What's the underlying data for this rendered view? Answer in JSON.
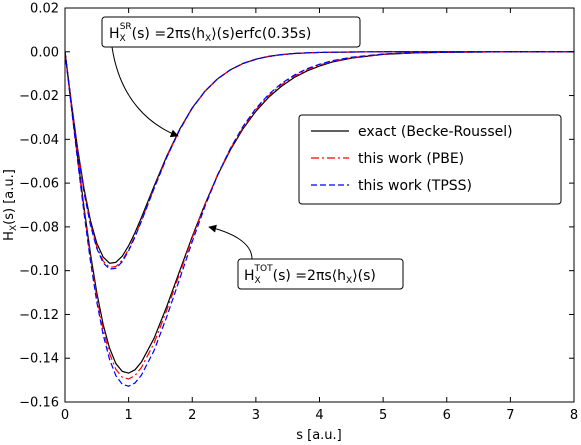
{
  "chart_data": {
    "type": "line",
    "xlabel": "s [a.u.]",
    "ylabel": "H",
    "ylabel_sub": "X",
    "ylabel_rest": "(s) [a.u.]",
    "xlim": [
      0,
      8
    ],
    "ylim": [
      -0.16,
      0.02
    ],
    "xticks": [
      0,
      1,
      2,
      3,
      4,
      5,
      6,
      7,
      8
    ],
    "xtick_labels": [
      "0",
      "1",
      "2",
      "3",
      "4",
      "5",
      "6",
      "7",
      "8"
    ],
    "yticks": [
      0.02,
      0.0,
      -0.02,
      -0.04,
      -0.06,
      -0.08,
      -0.1,
      -0.12,
      -0.14,
      -0.16
    ],
    "ytick_labels": [
      "0.02",
      "0.00",
      "−0.02",
      "−0.04",
      "−0.06",
      "−0.08",
      "−0.10",
      "−0.12",
      "−0.14",
      "−0.16"
    ],
    "grid": false,
    "legend_position": "center-right",
    "legend": [
      {
        "label": "exact (Becke-Roussel)",
        "color": "#000000",
        "dash": "solid"
      },
      {
        "label": "this work (PBE)",
        "color": "#ff0000",
        "dash": "dashdot"
      },
      {
        "label": "this work (TPSS)",
        "color": "#0000ff",
        "dash": "dashed"
      }
    ],
    "annotations": [
      {
        "id": "sr",
        "H": "H",
        "sub": "X",
        "sup": "SR",
        "text": "(s) =2πs⟨h",
        "text_sub": "X",
        "text_rest": "⟩(s)erfc(0.35s)",
        "points_to": [
          1.78,
          -0.04
        ]
      },
      {
        "id": "tot",
        "H": "H",
        "sub": "X",
        "sup": "TOT",
        "text": "(s) =2πs⟨h",
        "text_sub": "X",
        "text_rest": "⟩(s)",
        "points_to": [
          2.2,
          -0.08
        ]
      }
    ],
    "series": [
      {
        "color": "#000000",
        "dash": "solid",
        "group": "sr",
        "x": [
          0,
          0.1,
          0.2,
          0.3,
          0.4,
          0.5,
          0.6,
          0.7,
          0.8,
          0.9,
          1.0,
          1.1,
          1.2,
          1.4,
          1.6,
          1.8,
          2.0,
          2.2,
          2.4,
          2.6,
          2.8,
          3.0,
          3.2,
          3.4,
          3.6,
          3.8,
          4.0,
          4.5,
          5.0,
          5.5,
          6.0,
          7.0,
          8.0
        ],
        "y": [
          0,
          -0.0232,
          -0.0445,
          -0.0627,
          -0.0771,
          -0.0875,
          -0.0938,
          -0.0966,
          -0.0962,
          -0.0934,
          -0.0886,
          -0.0826,
          -0.0758,
          -0.0614,
          -0.0476,
          -0.0355,
          -0.0256,
          -0.018,
          -0.0123,
          -0.0082,
          -0.0053,
          -0.0034,
          -0.0021,
          -0.0013,
          -0.0008,
          -0.0005,
          -0.0003,
          -0.0001,
          0,
          0,
          0,
          0,
          0
        ]
      },
      {
        "color": "#ff0000",
        "dash": "dashdot",
        "group": "sr",
        "x": [
          0,
          0.1,
          0.2,
          0.3,
          0.4,
          0.5,
          0.6,
          0.7,
          0.8,
          0.9,
          1.0,
          1.1,
          1.2,
          1.4,
          1.6,
          1.8,
          2.0,
          2.2,
          2.4,
          2.6,
          2.8,
          3.0,
          3.2,
          3.4,
          3.6,
          3.8,
          4.0,
          4.5,
          5.0,
          5.5,
          6.0,
          7.0,
          8.0
        ],
        "y": [
          0,
          -0.0236,
          -0.0453,
          -0.0638,
          -0.0785,
          -0.0891,
          -0.0956,
          -0.0985,
          -0.0981,
          -0.0952,
          -0.0903,
          -0.0841,
          -0.0771,
          -0.0623,
          -0.0481,
          -0.0358,
          -0.0258,
          -0.0181,
          -0.0124,
          -0.0083,
          -0.0054,
          -0.0035,
          -0.0022,
          -0.0014,
          -0.0008,
          -0.0005,
          -0.0003,
          -0.0001,
          0,
          0,
          0,
          0,
          0
        ]
      },
      {
        "color": "#0000ff",
        "dash": "dashed",
        "group": "sr",
        "x": [
          0,
          0.1,
          0.2,
          0.3,
          0.4,
          0.5,
          0.6,
          0.7,
          0.8,
          0.9,
          1.0,
          1.1,
          1.2,
          1.4,
          1.6,
          1.8,
          2.0,
          2.2,
          2.4,
          2.6,
          2.8,
          3.0,
          3.2,
          3.4,
          3.6,
          3.8,
          4.0,
          4.5,
          5.0,
          5.5,
          6.0,
          7.0,
          8.0
        ],
        "y": [
          0,
          -0.0238,
          -0.0457,
          -0.0644,
          -0.0792,
          -0.0899,
          -0.0964,
          -0.0993,
          -0.0989,
          -0.0959,
          -0.0909,
          -0.0846,
          -0.0775,
          -0.0625,
          -0.0482,
          -0.0358,
          -0.0257,
          -0.018,
          -0.0123,
          -0.0082,
          -0.0053,
          -0.0034,
          -0.0021,
          -0.0013,
          -0.0008,
          -0.0005,
          -0.0003,
          -0.0001,
          0,
          0,
          0,
          0,
          0
        ]
      },
      {
        "color": "#000000",
        "dash": "solid",
        "group": "tot",
        "x": [
          0,
          0.1,
          0.2,
          0.3,
          0.4,
          0.5,
          0.6,
          0.7,
          0.8,
          0.9,
          1.0,
          1.1,
          1.2,
          1.4,
          1.6,
          1.8,
          2.0,
          2.2,
          2.4,
          2.6,
          2.8,
          3.0,
          3.2,
          3.4,
          3.6,
          3.8,
          4.0,
          4.2,
          4.5,
          5.0,
          5.5,
          6.0,
          6.5,
          7.0,
          8.0
        ],
        "y": [
          0,
          -0.0245,
          -0.0484,
          -0.0713,
          -0.0922,
          -0.1101,
          -0.1246,
          -0.1354,
          -0.1425,
          -0.146,
          -0.1468,
          -0.1453,
          -0.1418,
          -0.1309,
          -0.1163,
          -0.1003,
          -0.0844,
          -0.0696,
          -0.0563,
          -0.0448,
          -0.0351,
          -0.0272,
          -0.0208,
          -0.0158,
          -0.0118,
          -0.0088,
          -0.0065,
          -0.0047,
          -0.0029,
          -0.0012,
          -0.0005,
          -0.0002,
          -0.0001,
          0,
          0
        ]
      },
      {
        "color": "#ff0000",
        "dash": "dashdot",
        "group": "tot",
        "x": [
          0,
          0.1,
          0.2,
          0.3,
          0.4,
          0.5,
          0.6,
          0.7,
          0.8,
          0.9,
          1.0,
          1.1,
          1.2,
          1.4,
          1.6,
          1.8,
          2.0,
          2.2,
          2.4,
          2.6,
          2.8,
          3.0,
          3.2,
          3.4,
          3.6,
          3.8,
          4.0,
          4.2,
          4.5,
          5.0,
          5.5,
          6.0,
          6.5,
          7.0,
          8.0
        ],
        "y": [
          0,
          -0.0249,
          -0.0493,
          -0.0726,
          -0.0939,
          -0.1122,
          -0.1269,
          -0.1379,
          -0.1451,
          -0.1487,
          -0.1495,
          -0.1479,
          -0.1443,
          -0.1331,
          -0.118,
          -0.1015,
          -0.085,
          -0.0697,
          -0.056,
          -0.0443,
          -0.0345,
          -0.0265,
          -0.0201,
          -0.0151,
          -0.0112,
          -0.0083,
          -0.0061,
          -0.0044,
          -0.0027,
          -0.0011,
          -0.0005,
          -0.0002,
          -0.0001,
          0,
          0
        ]
      },
      {
        "color": "#0000ff",
        "dash": "dashed",
        "group": "tot",
        "x": [
          0,
          0.1,
          0.2,
          0.3,
          0.4,
          0.5,
          0.6,
          0.7,
          0.8,
          0.9,
          1.0,
          1.1,
          1.2,
          1.4,
          1.6,
          1.8,
          2.0,
          2.2,
          2.4,
          2.6,
          2.8,
          3.0,
          3.2,
          3.4,
          3.6,
          3.8,
          4.0,
          4.2,
          4.5,
          5.0,
          5.5,
          6.0,
          6.5,
          7.0,
          8.0
        ],
        "y": [
          0,
          -0.0253,
          -0.0502,
          -0.0739,
          -0.0957,
          -0.1143,
          -0.1293,
          -0.1405,
          -0.148,
          -0.1519,
          -0.1528,
          -0.1513,
          -0.1478,
          -0.1365,
          -0.121,
          -0.104,
          -0.0867,
          -0.0706,
          -0.0563,
          -0.0441,
          -0.034,
          -0.0259,
          -0.0195,
          -0.0145,
          -0.0107,
          -0.0078,
          -0.0057,
          -0.0041,
          -0.0025,
          -0.001,
          -0.0004,
          -0.0002,
          -0.0001,
          0,
          0
        ]
      }
    ]
  }
}
